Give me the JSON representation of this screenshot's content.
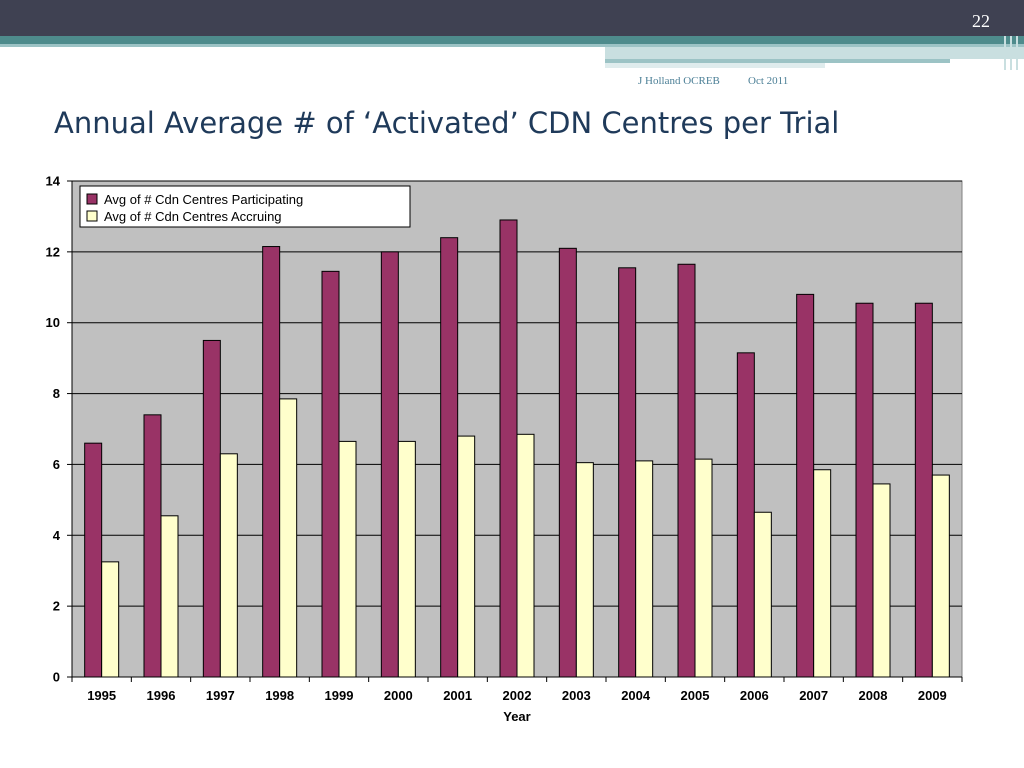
{
  "slide": {
    "number": "22",
    "footer_author": "J Holland OCREB",
    "footer_date": "Oct 2011",
    "title": "Annual Average # of ‘Activated’ CDN Centres per Trial"
  },
  "colors": {
    "header_dark": "#3f4152",
    "header_teal": "#4e8b8c",
    "plot_background": "#c0c0c0",
    "participating": "#993366",
    "accruing": "#ffffcc"
  },
  "chart_data": {
    "type": "bar",
    "title": "",
    "xlabel": "Year",
    "ylabel": "",
    "ylim": [
      0,
      14
    ],
    "yticks": [
      0,
      2,
      4,
      6,
      8,
      10,
      12,
      14
    ],
    "grid": true,
    "legend_position": "top-left",
    "categories": [
      "1995",
      "1996",
      "1997",
      "1998",
      "1999",
      "2000",
      "2001",
      "2002",
      "2003",
      "2004",
      "2005",
      "2006",
      "2007",
      "2008",
      "2009"
    ],
    "series": [
      {
        "name": "Avg of # Cdn Centres Participating",
        "color": "#993366",
        "values": [
          6.6,
          7.4,
          9.5,
          12.15,
          11.45,
          12.0,
          12.4,
          12.9,
          12.1,
          11.55,
          11.65,
          9.15,
          10.8,
          10.55,
          10.55
        ]
      },
      {
        "name": "Avg of # Cdn Centres Accruing",
        "color": "#ffffcc",
        "values": [
          3.25,
          4.55,
          6.3,
          7.85,
          6.65,
          6.65,
          6.8,
          6.85,
          6.05,
          6.1,
          6.15,
          4.65,
          5.85,
          5.45,
          5.7
        ]
      }
    ]
  }
}
